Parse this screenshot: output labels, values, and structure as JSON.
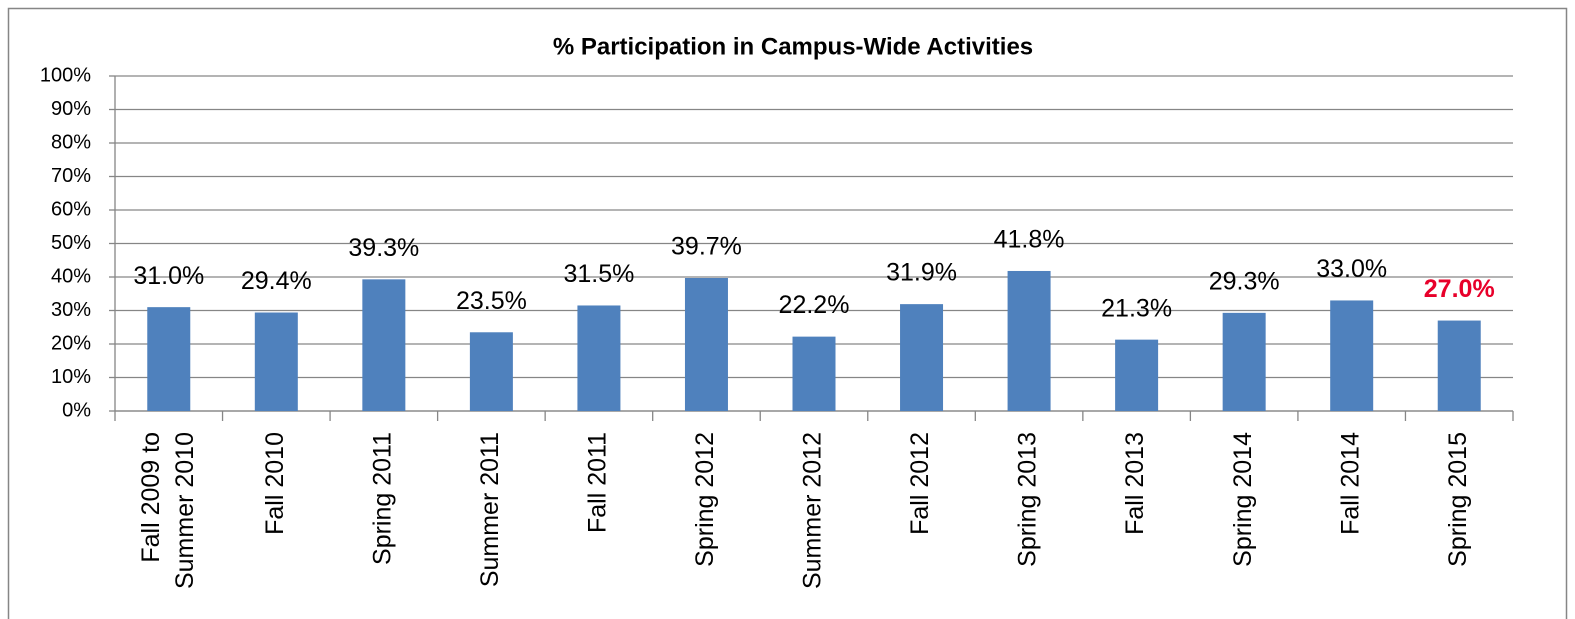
{
  "chart_data": {
    "type": "bar",
    "title": "% Participation in Campus-Wide Activities",
    "categories": [
      "Fall 2009 to Summer 2010",
      "Fall 2010",
      "Spring 2011",
      "Summer 2011",
      "Fall 2011",
      "Spring 2012",
      "Summer 2012",
      "Fall 2012",
      "Spring 2013",
      "Fall 2013",
      "Spring 2014",
      "Fall 2014",
      "Spring 2015"
    ],
    "values": [
      31.0,
      29.4,
      39.3,
      23.5,
      31.5,
      39.7,
      22.2,
      31.9,
      41.8,
      21.3,
      29.3,
      33.0,
      27.0
    ],
    "value_labels": [
      "31.0%",
      "29.4%",
      "39.3%",
      "23.5%",
      "31.5%",
      "39.7%",
      "22.2%",
      "31.9%",
      "41.8%",
      "21.3%",
      "29.3%",
      "33.0%",
      "27.0%"
    ],
    "value_label_colors": [
      "#000000",
      "#000000",
      "#000000",
      "#000000",
      "#000000",
      "#000000",
      "#000000",
      "#000000",
      "#000000",
      "#000000",
      "#000000",
      "#000000",
      "#e8002a"
    ],
    "color": "#4f81bd",
    "ylim": [
      0,
      100
    ],
    "yticks": [
      {
        "value": 0,
        "label": "0%"
      },
      {
        "value": 10,
        "label": "10%"
      },
      {
        "value": 20,
        "label": "20%"
      },
      {
        "value": 30,
        "label": "30%"
      },
      {
        "value": 40,
        "label": "40%"
      },
      {
        "value": 50,
        "label": "50%"
      },
      {
        "value": 60,
        "label": "60%"
      },
      {
        "value": 70,
        "label": "70%"
      },
      {
        "value": 80,
        "label": "80%"
      },
      {
        "value": 90,
        "label": "90%"
      },
      {
        "value": 100,
        "label": "100%"
      }
    ],
    "grid": true
  }
}
